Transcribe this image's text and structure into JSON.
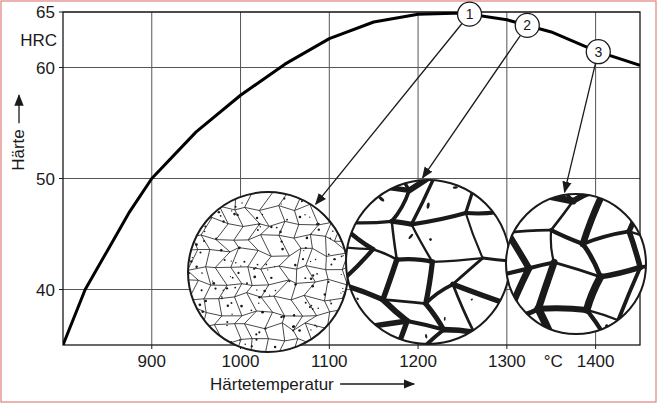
{
  "chart_data": {
    "type": "line",
    "x": [
      800,
      825,
      850,
      875,
      900,
      950,
      1000,
      1050,
      1100,
      1150,
      1200,
      1250,
      1300,
      1350,
      1400,
      1450
    ],
    "values": [
      35,
      40,
      43.5,
      47,
      50,
      54.2,
      57.5,
      60.3,
      62.6,
      64.1,
      64.8,
      64.9,
      64.3,
      63.2,
      61.5,
      60.2
    ],
    "color": "#000000",
    "xlabel": "Härtetemperatur",
    "xunit": "°C",
    "ylabel": "Härte",
    "yunit": "HRC",
    "xlim": [
      800,
      1450
    ],
    "ylim": [
      35,
      65
    ],
    "xticks": [
      900,
      1000,
      1100,
      1200,
      1300,
      1400
    ],
    "yticks": [
      40,
      50,
      60,
      65
    ],
    "grid": true,
    "annotations": [
      {
        "label": "1",
        "x": 1258
      },
      {
        "label": "2",
        "x": 1323
      },
      {
        "label": "3",
        "x": 1403
      }
    ]
  }
}
